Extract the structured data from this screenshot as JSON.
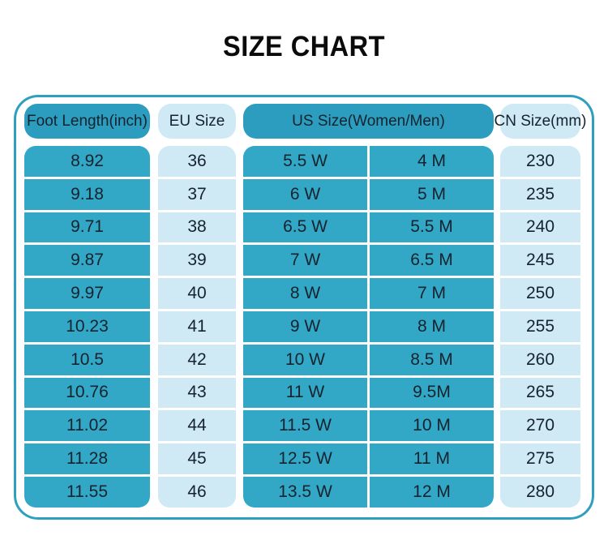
{
  "title": "SIZE CHART",
  "table": {
    "headers": {
      "foot": "Foot Length(inch)",
      "eu": "EU Size",
      "us": "US Size(Women/Men)",
      "cn": "CN Size(mm)"
    }
  },
  "chart_data": {
    "type": "table",
    "title": "SIZE CHART",
    "columns": [
      "Foot Length(inch)",
      "EU Size",
      "US Size(Women)",
      "US Size(Men)",
      "CN Size(mm)"
    ],
    "rows": [
      [
        "8.92",
        "36",
        "5.5 W",
        "4 M",
        "230"
      ],
      [
        "9.18",
        "37",
        "6 W",
        "5 M",
        "235"
      ],
      [
        "9.71",
        "38",
        "6.5 W",
        "5.5 M",
        "240"
      ],
      [
        "9.87",
        "39",
        "7 W",
        "6.5 M",
        "245"
      ],
      [
        "9.97",
        "40",
        "8 W",
        "7 M",
        "250"
      ],
      [
        "10.23",
        "41",
        "9 W",
        "8 M",
        "255"
      ],
      [
        "10.5",
        "42",
        "10 W",
        "8.5 M",
        "260"
      ],
      [
        "10.76",
        "43",
        "11 W",
        "9.5M",
        "265"
      ],
      [
        "11.02",
        "44",
        "11.5 W",
        "10 M",
        "270"
      ],
      [
        "11.28",
        "45",
        "12.5 W",
        "11 M",
        "275"
      ],
      [
        "11.55",
        "46",
        "13.5 W",
        "12 M",
        "280"
      ]
    ]
  },
  "colors": {
    "teal_header": "#2C9DBE",
    "teal_cell": "#32A7C6",
    "light_cell": "#CFEAF5",
    "border": "#2E9FBF",
    "text": "#15232E",
    "title": "#0B0B0B"
  }
}
